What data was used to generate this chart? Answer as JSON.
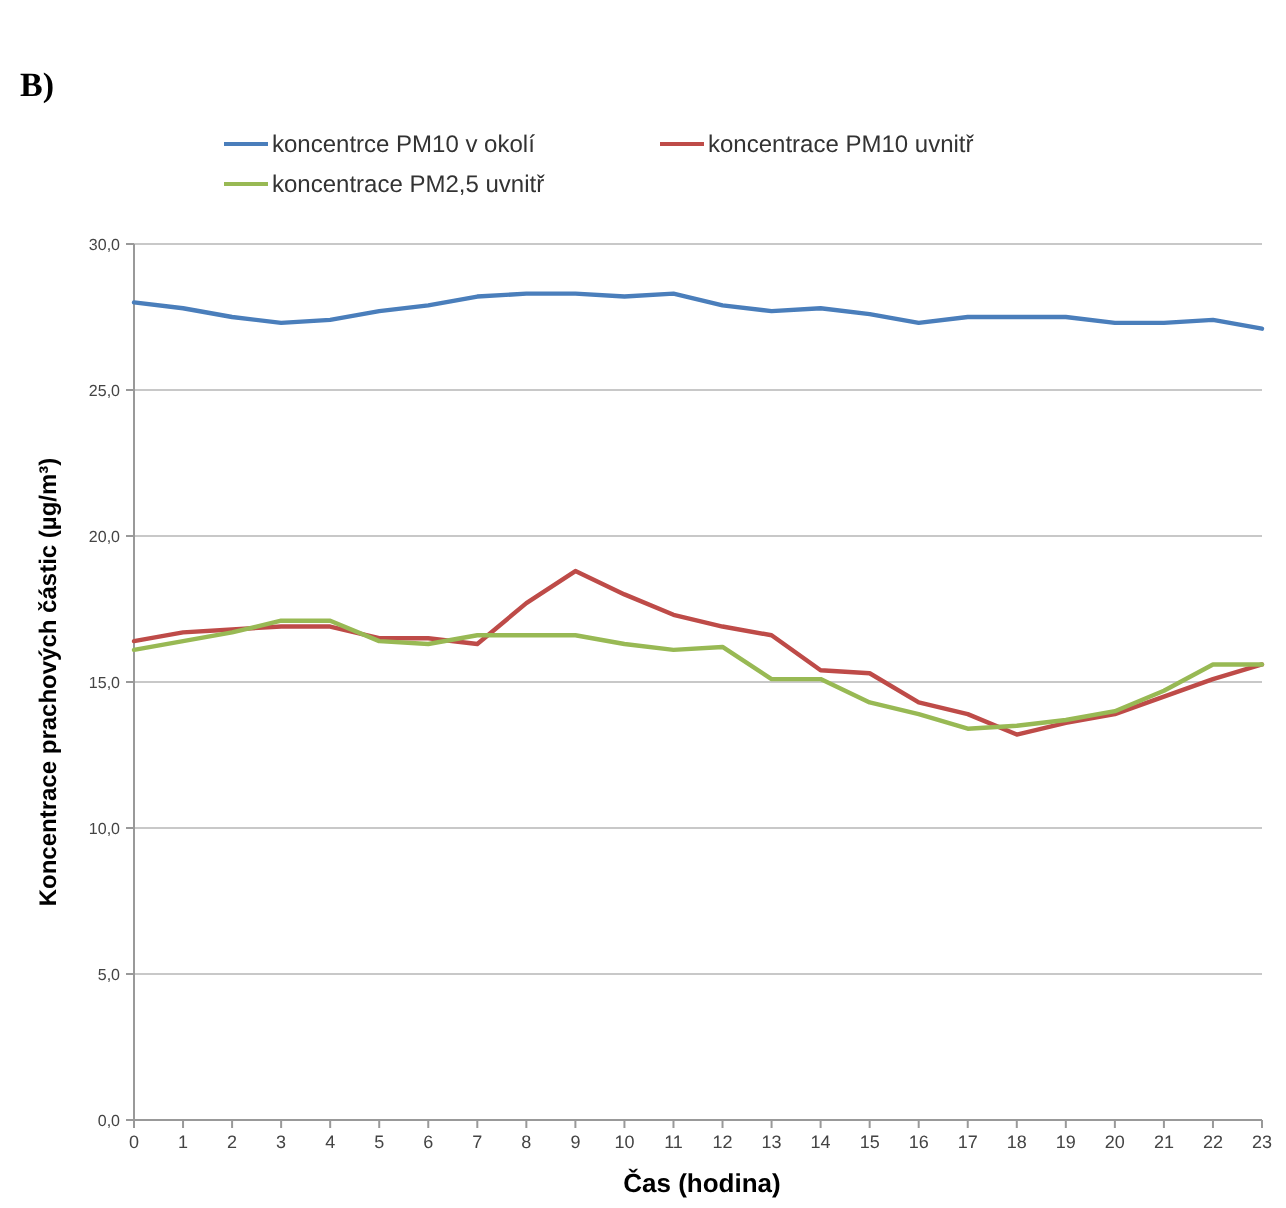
{
  "chart_data": {
    "type": "line",
    "annotations": [
      "B)"
    ],
    "xlabel": "Čas (hodina)",
    "ylabel": "Koncentrace prachových částic (µg/m³)",
    "x": [
      0,
      1,
      2,
      3,
      4,
      5,
      6,
      7,
      8,
      9,
      10,
      11,
      12,
      13,
      14,
      15,
      16,
      17,
      18,
      19,
      20,
      21,
      22,
      23
    ],
    "xlim": [
      0,
      23
    ],
    "xticks": [
      0,
      1,
      2,
      3,
      4,
      5,
      6,
      7,
      8,
      9,
      10,
      11,
      12,
      13,
      14,
      15,
      16,
      17,
      18,
      19,
      20,
      21,
      22,
      23
    ],
    "ylim": [
      0,
      30
    ],
    "yticks": [
      {
        "value": 0,
        "label": "0,0"
      },
      {
        "value": 5,
        "label": "5,0"
      },
      {
        "value": 10,
        "label": "10,0"
      },
      {
        "value": 15,
        "label": "15,0"
      },
      {
        "value": 20,
        "label": "20,0"
      },
      {
        "value": 25,
        "label": "25,0"
      },
      {
        "value": 30,
        "label": "30,0"
      }
    ],
    "grid": "y",
    "legend": "top",
    "marker": "none",
    "line_style": "solid",
    "series": [
      {
        "name": "koncentrce PM10 v okolí",
        "color": "#4a7ebb",
        "values": [
          28.0,
          27.8,
          27.5,
          27.3,
          27.4,
          27.7,
          27.9,
          28.2,
          28.3,
          28.3,
          28.2,
          28.3,
          27.9,
          27.7,
          27.8,
          27.6,
          27.3,
          27.5,
          27.5,
          27.5,
          27.3,
          27.3,
          27.4,
          27.1
        ]
      },
      {
        "name": "koncentrace PM10 uvnitř",
        "color": "#be4b48",
        "values": [
          16.4,
          16.7,
          16.8,
          16.9,
          16.9,
          16.5,
          16.5,
          16.3,
          17.7,
          18.8,
          18.0,
          17.3,
          16.9,
          16.6,
          15.4,
          15.3,
          14.3,
          13.9,
          13.2,
          13.6,
          13.9,
          14.5,
          15.1,
          15.6
        ]
      },
      {
        "name": "koncentrace PM2,5 uvnitř",
        "color": "#98b954",
        "values": [
          16.1,
          16.4,
          16.7,
          17.1,
          17.1,
          16.4,
          16.3,
          16.6,
          16.6,
          16.6,
          16.3,
          16.1,
          16.2,
          15.1,
          15.1,
          14.3,
          13.9,
          13.4,
          13.5,
          13.7,
          14.0,
          14.7,
          15.6,
          15.6
        ]
      }
    ]
  }
}
